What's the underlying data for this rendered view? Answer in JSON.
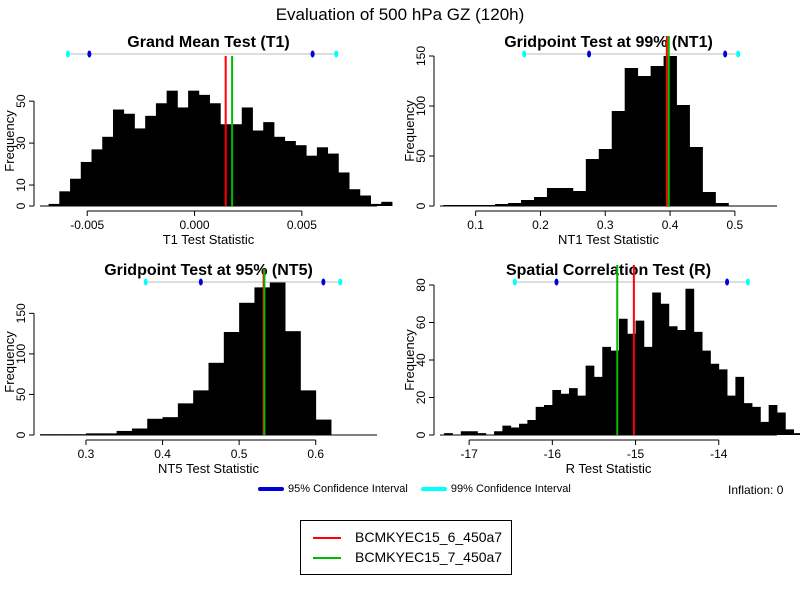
{
  "title": "Evaluation of 500 hPa GZ (120h)",
  "inflation_label": "Inflation: 0",
  "legend_ci": [
    {
      "label": "95% Confidence Interval",
      "color": "#0000dd"
    },
    {
      "label": "99% Confidence Interval",
      "color": "#00ffff"
    }
  ],
  "legend_runs": [
    {
      "label": "BCMKYEC15_6_450a7",
      "color": "#ff0000"
    },
    {
      "label": "BCMKYEC15_7_450a7",
      "color": "#00bb00"
    }
  ],
  "chart_data": [
    {
      "type": "bar",
      "title": "Grand Mean Test (T1)",
      "xlabel": "T1 Test Statistic",
      "ylabel": "Frequency",
      "xlim": [
        -0.0072,
        0.0085
      ],
      "ylim": [
        0,
        62
      ],
      "xticks": [
        -0.005,
        0.0,
        0.005
      ],
      "xtick_labels": [
        "-0.005",
        "0.000",
        "0.005"
      ],
      "yticks": [
        0,
        10,
        30,
        50
      ],
      "ytick_labels": [
        "0",
        "10",
        "30",
        "50"
      ],
      "bin_start": -0.0068,
      "bin_width": 0.0005,
      "values": [
        1,
        7,
        13,
        21,
        27,
        33,
        46,
        44,
        37,
        43,
        49,
        55,
        47,
        55,
        53,
        49,
        39,
        39,
        47,
        36,
        40,
        33,
        31,
        29,
        24,
        28,
        25,
        16,
        8,
        5,
        1,
        2
      ],
      "ci95": [
        -0.0049,
        0.0055
      ],
      "ci99": [
        -0.0059,
        0.0066
      ],
      "runs": [
        0.00145,
        0.00175
      ]
    },
    {
      "type": "bar",
      "title": "Gridpoint Test at 99% (NT1)",
      "xlabel": "NT1 Test Statistic",
      "ylabel": "Frequency",
      "xlim": [
        0.045,
        0.565
      ],
      "ylim": [
        0,
        150
      ],
      "xticks": [
        0.1,
        0.2,
        0.3,
        0.4,
        0.5
      ],
      "xtick_labels": [
        "0.1",
        "0.2",
        "0.3",
        "0.4",
        "0.5"
      ],
      "yticks": [
        0,
        50,
        100,
        150
      ],
      "ytick_labels": [
        "0",
        "50",
        "100",
        "150"
      ],
      "bin_start": 0.05,
      "bin_width": 0.02,
      "values": [
        1,
        1,
        1,
        1,
        2,
        3,
        6,
        9,
        18,
        18,
        15,
        47,
        57,
        95,
        138,
        130,
        140,
        150,
        101,
        59,
        14,
        3
      ],
      "ci95": [
        0.275,
        0.485
      ],
      "ci99": [
        0.175,
        0.505
      ],
      "runs": [
        0.395,
        0.398
      ]
    },
    {
      "type": "bar",
      "title": "Gridpoint Test at 95% (NT5)",
      "xlabel": "NT5 Test Statistic",
      "ylabel": "Frequency",
      "xlim": [
        0.24,
        0.68
      ],
      "ylim": [
        0,
        180
      ],
      "xticks": [
        0.3,
        0.4,
        0.5,
        0.6
      ],
      "xtick_labels": [
        "0.3",
        "0.4",
        "0.5",
        "0.6"
      ],
      "yticks": [
        0,
        50,
        100,
        150
      ],
      "ytick_labels": [
        "0",
        "50",
        "100",
        "150"
      ],
      "bin_start": 0.24,
      "bin_width": 0.02,
      "values": [
        1,
        1,
        1,
        2,
        2,
        5,
        8,
        20,
        22,
        39,
        55,
        89,
        127,
        163,
        182,
        188,
        128,
        55,
        19
      ],
      "ci95": [
        0.45,
        0.61
      ],
      "ci99": [
        0.378,
        0.632
      ],
      "runs": [
        0.532,
        0.533
      ]
    },
    {
      "type": "bar",
      "title": "Spatial Correlation Test (R)",
      "xlabel": "R Test Statistic",
      "ylabel": "Frequency",
      "xlim": [
        -17.35,
        -13.3
      ],
      "ylim": [
        0,
        80
      ],
      "xticks": [
        -17,
        -16,
        -15,
        -14
      ],
      "xtick_labels": [
        "-17",
        "-16",
        "-15",
        "-14"
      ],
      "yticks": [
        0,
        20,
        40,
        60,
        80
      ],
      "ytick_labels": [
        "0",
        "20",
        "40",
        "60",
        "80"
      ],
      "bin_start": -17.3,
      "bin_width": 0.1,
      "values": [
        1,
        0,
        2,
        2,
        1,
        0,
        2,
        5,
        4,
        6,
        8,
        15,
        16,
        24,
        22,
        25,
        21,
        37,
        31,
        47,
        45,
        62,
        54,
        61,
        47,
        76,
        70,
        58,
        56,
        78,
        55,
        45,
        38,
        35,
        21,
        31,
        17,
        15,
        7,
        16,
        12,
        3,
        1,
        1
      ],
      "ci95": [
        -15.95,
        -13.9
      ],
      "ci99": [
        -16.45,
        -13.65
      ],
      "runs": [
        -15.02,
        -15.22
      ]
    }
  ]
}
